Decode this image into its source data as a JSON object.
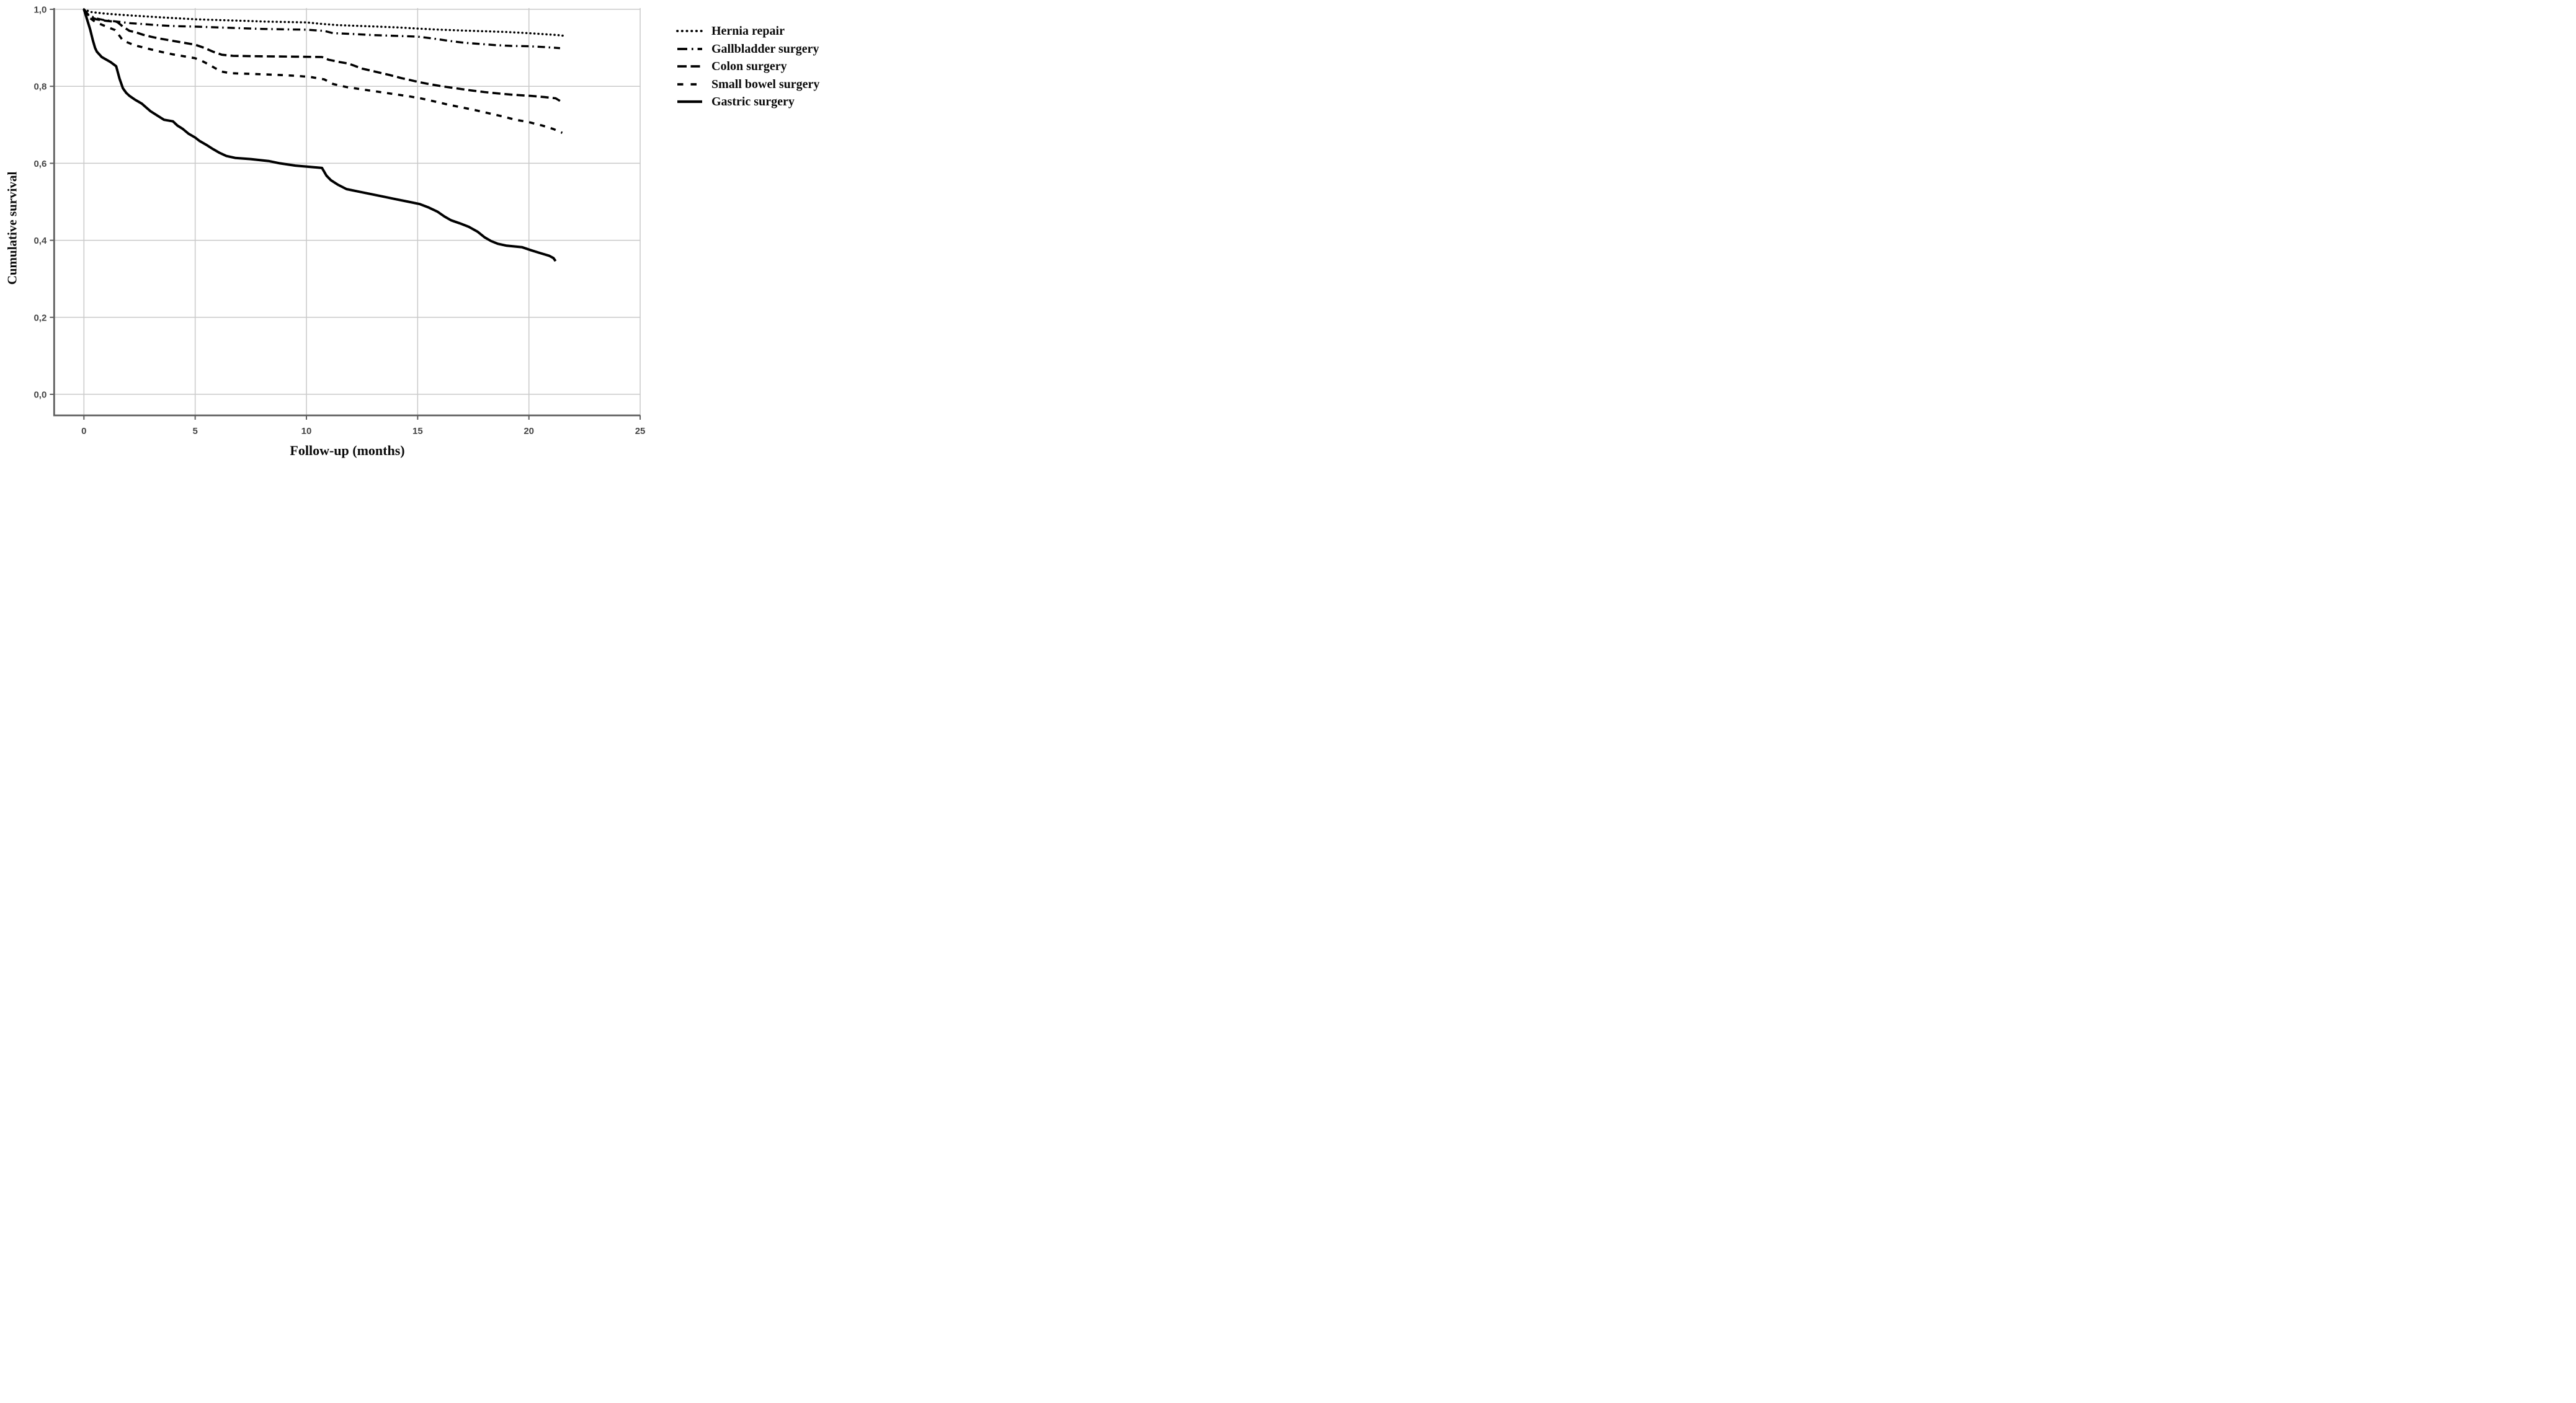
{
  "figure": {
    "description": "Kaplan-Meier cumulative survival plot comparing five types of abdominal surgery over follow-up months",
    "background": "#ffffff"
  },
  "chart_data": {
    "type": "line",
    "subtype": "kaplan-meier-step",
    "title": "",
    "xlabel": "Follow-up (months)",
    "ylabel": "Cumulative survival",
    "grid": true,
    "legend_position": "outside-right-top",
    "xlim": [
      -1.35,
      25
    ],
    "ylim": [
      -0.055,
      1.0
    ],
    "x_ticks": [
      {
        "value": 0,
        "label": "0"
      },
      {
        "value": 5,
        "label": "5"
      },
      {
        "value": 10,
        "label": "10"
      },
      {
        "value": 15,
        "label": "15"
      },
      {
        "value": 20,
        "label": "20"
      },
      {
        "value": 25,
        "label": "25"
      }
    ],
    "y_ticks": [
      {
        "value": 1.0,
        "label": "1,0"
      },
      {
        "value": 0.8,
        "label": "0,8"
      },
      {
        "value": 0.6,
        "label": "0,6"
      },
      {
        "value": 0.4,
        "label": "0,4"
      },
      {
        "value": 0.2,
        "label": "0,2"
      },
      {
        "value": 0.0,
        "label": "0,0"
      }
    ],
    "colors": {
      "curve": "#000000",
      "grid": "#c9c9c9",
      "axis": "#5f5f5f",
      "tick_text": "#454545",
      "label_text": "#0a0a0a",
      "background": "#ffffff"
    },
    "series": [
      {
        "name": "Hernia repair",
        "line_style": "dotted",
        "color": "#000000",
        "points": [
          [
            0,
            1
          ],
          [
            0.3,
            0.993
          ],
          [
            0.9,
            0.989
          ],
          [
            1.6,
            0.986
          ],
          [
            2.4,
            0.983
          ],
          [
            3.2,
            0.98
          ],
          [
            4.1,
            0.977
          ],
          [
            5,
            0.974
          ],
          [
            6.1,
            0.972
          ],
          [
            7.2,
            0.97
          ],
          [
            8.2,
            0.968
          ],
          [
            9.1,
            0.967
          ],
          [
            10,
            0.966
          ],
          [
            10.7,
            0.962
          ],
          [
            11.4,
            0.959
          ],
          [
            12.3,
            0.957
          ],
          [
            13.2,
            0.955
          ],
          [
            14.1,
            0.953
          ],
          [
            15,
            0.95
          ],
          [
            16,
            0.947
          ],
          [
            17,
            0.945
          ],
          [
            18,
            0.943
          ],
          [
            19,
            0.941
          ],
          [
            20,
            0.938
          ],
          [
            20.8,
            0.935
          ],
          [
            21.3,
            0.933
          ],
          [
            21.6,
            0.931
          ]
        ]
      },
      {
        "name": "Gallbladder surgery",
        "line_style": "dashdot",
        "color": "#000000",
        "points": [
          [
            0,
            1
          ],
          [
            0.2,
            0.986
          ],
          [
            0.5,
            0.977
          ],
          [
            0.9,
            0.972
          ],
          [
            1.5,
            0.968
          ],
          [
            2.1,
            0.964
          ],
          [
            2.8,
            0.961
          ],
          [
            3.5,
            0.958
          ],
          [
            4.2,
            0.956
          ],
          [
            5,
            0.955
          ],
          [
            6,
            0.953
          ],
          [
            7,
            0.951
          ],
          [
            8,
            0.949
          ],
          [
            9,
            0.948
          ],
          [
            10,
            0.947
          ],
          [
            10.8,
            0.944
          ],
          [
            11.2,
            0.938
          ],
          [
            12,
            0.936
          ],
          [
            13,
            0.933
          ],
          [
            14,
            0.931
          ],
          [
            15,
            0.929
          ],
          [
            15.7,
            0.924
          ],
          [
            16.4,
            0.918
          ],
          [
            17.1,
            0.913
          ],
          [
            17.8,
            0.91
          ],
          [
            18.5,
            0.907
          ],
          [
            19.2,
            0.905
          ],
          [
            20,
            0.904
          ],
          [
            20.7,
            0.902
          ],
          [
            21.4,
            0.899
          ]
        ]
      },
      {
        "name": "Colon surgery",
        "line_style": "longdash",
        "color": "#000000",
        "points": [
          [
            0,
            1
          ],
          [
            0.25,
            0.981
          ],
          [
            0.55,
            0.974
          ],
          [
            1.0,
            0.97
          ],
          [
            1.5,
            0.967
          ],
          [
            1.75,
            0.955
          ],
          [
            2.05,
            0.944
          ],
          [
            2.35,
            0.94
          ],
          [
            2.65,
            0.934
          ],
          [
            3.0,
            0.929
          ],
          [
            3.4,
            0.924
          ],
          [
            3.9,
            0.919
          ],
          [
            4.4,
            0.914
          ],
          [
            5.0,
            0.908
          ],
          [
            5.4,
            0.9
          ],
          [
            5.8,
            0.89
          ],
          [
            6.2,
            0.882
          ],
          [
            6.7,
            0.879
          ],
          [
            8.0,
            0.878
          ],
          [
            9.5,
            0.877
          ],
          [
            10.7,
            0.876
          ],
          [
            11.0,
            0.869
          ],
          [
            11.5,
            0.863
          ],
          [
            11.9,
            0.859
          ],
          [
            12.5,
            0.846
          ],
          [
            13.1,
            0.838
          ],
          [
            13.7,
            0.83
          ],
          [
            14.3,
            0.821
          ],
          [
            14.9,
            0.813
          ],
          [
            15.4,
            0.807
          ],
          [
            16.1,
            0.8
          ],
          [
            16.7,
            0.795
          ],
          [
            17.3,
            0.79
          ],
          [
            18.0,
            0.785
          ],
          [
            18.7,
            0.781
          ],
          [
            19.3,
            0.778
          ],
          [
            20.1,
            0.775
          ],
          [
            20.7,
            0.772
          ],
          [
            21.2,
            0.769
          ],
          [
            21.4,
            0.762
          ]
        ]
      },
      {
        "name": "Small bowel surgery",
        "line_style": "dash",
        "color": "#000000",
        "points": [
          [
            0,
            1
          ],
          [
            0.25,
            0.978
          ],
          [
            0.5,
            0.968
          ],
          [
            0.8,
            0.96
          ],
          [
            1.1,
            0.953
          ],
          [
            1.4,
            0.946
          ],
          [
            1.6,
            0.931
          ],
          [
            1.75,
            0.919
          ],
          [
            2.0,
            0.913
          ],
          [
            2.3,
            0.906
          ],
          [
            2.6,
            0.902
          ],
          [
            3.0,
            0.896
          ],
          [
            3.5,
            0.889
          ],
          [
            4.0,
            0.883
          ],
          [
            4.6,
            0.877
          ],
          [
            5.0,
            0.873
          ],
          [
            5.3,
            0.866
          ],
          [
            5.6,
            0.857
          ],
          [
            5.9,
            0.847
          ],
          [
            6.2,
            0.838
          ],
          [
            6.6,
            0.834
          ],
          [
            7.6,
            0.832
          ],
          [
            8.6,
            0.83
          ],
          [
            9.6,
            0.827
          ],
          [
            10.2,
            0.824
          ],
          [
            10.8,
            0.818
          ],
          [
            11.2,
            0.806
          ],
          [
            11.8,
            0.798
          ],
          [
            12.5,
            0.792
          ],
          [
            13.2,
            0.786
          ],
          [
            13.9,
            0.78
          ],
          [
            14.6,
            0.774
          ],
          [
            15.2,
            0.768
          ],
          [
            15.8,
            0.76
          ],
          [
            16.4,
            0.752
          ],
          [
            17.0,
            0.745
          ],
          [
            17.6,
            0.738
          ],
          [
            18.2,
            0.73
          ],
          [
            18.8,
            0.722
          ],
          [
            19.4,
            0.713
          ],
          [
            20.0,
            0.707
          ],
          [
            20.6,
            0.698
          ],
          [
            21.1,
            0.689
          ],
          [
            21.5,
            0.679
          ]
        ]
      },
      {
        "name": "Gastric surgery",
        "line_style": "solid",
        "color": "#000000",
        "points": [
          [
            0,
            1
          ],
          [
            0.15,
            0.972
          ],
          [
            0.28,
            0.948
          ],
          [
            0.4,
            0.92
          ],
          [
            0.5,
            0.9
          ],
          [
            0.58,
            0.89
          ],
          [
            0.8,
            0.876
          ],
          [
            1.2,
            0.863
          ],
          [
            1.45,
            0.852
          ],
          [
            1.6,
            0.82
          ],
          [
            1.75,
            0.795
          ],
          [
            1.9,
            0.783
          ],
          [
            2.05,
            0.775
          ],
          [
            2.3,
            0.765
          ],
          [
            2.6,
            0.755
          ],
          [
            2.8,
            0.745
          ],
          [
            3.0,
            0.735
          ],
          [
            3.3,
            0.724
          ],
          [
            3.6,
            0.713
          ],
          [
            4.0,
            0.709
          ],
          [
            4.2,
            0.698
          ],
          [
            4.45,
            0.689
          ],
          [
            4.7,
            0.677
          ],
          [
            5.0,
            0.667
          ],
          [
            5.2,
            0.658
          ],
          [
            5.5,
            0.648
          ],
          [
            5.8,
            0.637
          ],
          [
            6.1,
            0.627
          ],
          [
            6.4,
            0.619
          ],
          [
            6.8,
            0.614
          ],
          [
            7.5,
            0.611
          ],
          [
            8.3,
            0.606
          ],
          [
            8.8,
            0.6
          ],
          [
            9.5,
            0.594
          ],
          [
            10.1,
            0.591
          ],
          [
            10.7,
            0.588
          ],
          [
            10.9,
            0.568
          ],
          [
            11.1,
            0.556
          ],
          [
            11.4,
            0.545
          ],
          [
            11.8,
            0.533
          ],
          [
            12.3,
            0.527
          ],
          [
            12.9,
            0.52
          ],
          [
            13.5,
            0.513
          ],
          [
            14.0,
            0.507
          ],
          [
            14.6,
            0.5
          ],
          [
            15.1,
            0.494
          ],
          [
            15.5,
            0.485
          ],
          [
            15.9,
            0.474
          ],
          [
            16.2,
            0.462
          ],
          [
            16.5,
            0.452
          ],
          [
            16.9,
            0.444
          ],
          [
            17.3,
            0.435
          ],
          [
            17.7,
            0.422
          ],
          [
            18.0,
            0.408
          ],
          [
            18.3,
            0.398
          ],
          [
            18.6,
            0.391
          ],
          [
            19.0,
            0.386
          ],
          [
            19.7,
            0.382
          ],
          [
            20.1,
            0.374
          ],
          [
            20.5,
            0.367
          ],
          [
            20.9,
            0.36
          ],
          [
            21.1,
            0.354
          ],
          [
            21.2,
            0.346
          ]
        ]
      }
    ]
  }
}
